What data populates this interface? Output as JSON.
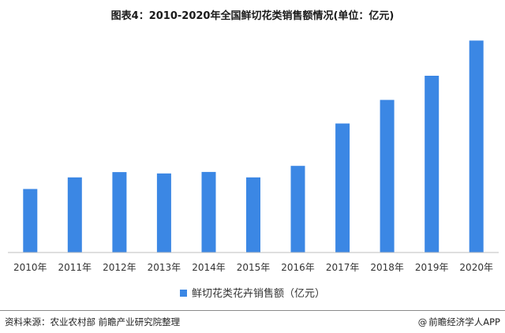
{
  "title": "图表4：2010-2020年全国鲜切花类销售额情况(单位：亿元)",
  "source": "资料来源：农业农村部 前瞻产业研究院整理",
  "brand": "前瞻经济学人APP",
  "brand_icon": "at-icon",
  "colors": {
    "bar": "#3b87e4",
    "axis": "#bfbfbf"
  },
  "chart_data": {
    "type": "bar",
    "title": "图表4：2010-2020年全国鲜切花类销售额情况(单位：亿元)",
    "categories": [
      "2010年",
      "2011年",
      "2012年",
      "2013年",
      "2014年",
      "2015年",
      "2016年",
      "2017年",
      "2018年",
      "2019年",
      "2020年"
    ],
    "series": [
      {
        "name": "鲜切花类花卉销售额（亿元）",
        "values": [
          408,
          483,
          517,
          508,
          518,
          483,
          557,
          829,
          981,
          1136,
          1362
        ]
      }
    ],
    "ylim": [
      0,
      1420
    ],
    "grid": false,
    "legend": "bottom"
  }
}
